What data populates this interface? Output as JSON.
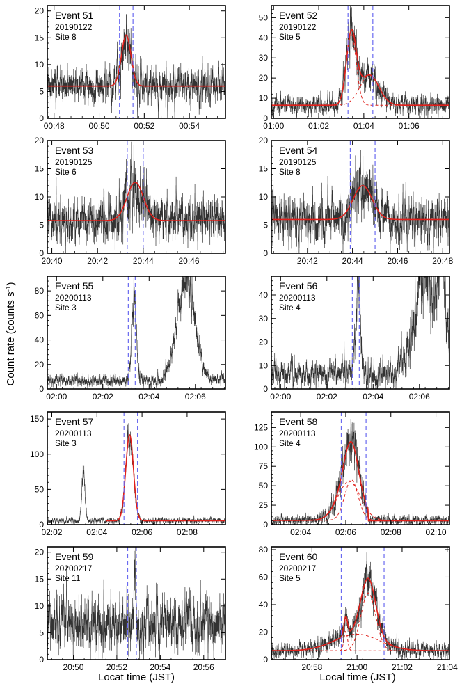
{
  "figure": {
    "ylabel": "Count rate (counts s",
    "ylabel_sup": "-1",
    "ylabel_close": ")",
    "xlabel_left": "Locat time (JST)",
    "xlabel_right": "Local time (JST)"
  },
  "colors": {
    "data": "#333333",
    "fit": "#e0201b",
    "window": "#6a6af0",
    "frame": "#000000"
  },
  "chart_data": [
    {
      "type": "line",
      "event": "Event 51",
      "date": "20190122",
      "site": "Site 8",
      "xlim": [
        47.7,
        55.6
      ],
      "ylim": [
        0,
        21
      ],
      "xticks": [
        {
          "v": 48,
          "label": "00:48"
        },
        {
          "v": 50,
          "label": "00:50"
        },
        {
          "v": 52,
          "label": "00:52"
        },
        {
          "v": 54,
          "label": "00:54"
        }
      ],
      "yticks": [
        0,
        5,
        10,
        15,
        20
      ],
      "windows": [
        50.9,
        51.5
      ],
      "baseline": 6.0,
      "noise": 1.6,
      "seed": 51,
      "peaks": [
        {
          "t": 51.2,
          "a": 9.5,
          "s": 0.21
        }
      ],
      "fit_components": false,
      "fit_range": [
        47.7,
        55.6
      ],
      "jumps": []
    },
    {
      "type": "line",
      "event": "Event 52",
      "date": "20190122",
      "site": "Site 5",
      "xlim": [
        59.9,
        67.8
      ],
      "ylim": [
        0,
        56
      ],
      "xticks": [
        {
          "v": 60,
          "label": "01:00"
        },
        {
          "v": 62,
          "label": "01:02"
        },
        {
          "v": 64,
          "label": "01:04"
        },
        {
          "v": 66,
          "label": "01:06"
        }
      ],
      "yticks": [
        0,
        10,
        20,
        30,
        40,
        50
      ],
      "windows": [
        63.3,
        64.4
      ],
      "baseline": 6.5,
      "noise": 2.2,
      "seed": 52,
      "peaks": [
        {
          "t": 63.45,
          "a": 35,
          "s": 0.22
        },
        {
          "t": 64.25,
          "a": 15,
          "s": 0.42
        }
      ],
      "fit_components": true,
      "fit_range": [
        59.9,
        67.8
      ],
      "jumps": []
    },
    {
      "type": "line",
      "event": "Event 53",
      "date": "20190125",
      "site": "Site 6",
      "xlim": [
        1239.8,
        1247.6
      ],
      "ylim": [
        0,
        20
      ],
      "xticks": [
        {
          "v": 1240,
          "label": "20:40"
        },
        {
          "v": 1242,
          "label": "20:42"
        },
        {
          "v": 1244,
          "label": "20:44"
        },
        {
          "v": 1246,
          "label": "20:46"
        }
      ],
      "yticks": [
        0,
        5,
        10,
        15,
        20
      ],
      "windows": [
        1243.3,
        1244.0
      ],
      "baseline": 5.8,
      "noise": 1.9,
      "seed": 53,
      "peaks": [
        {
          "t": 1243.65,
          "a": 6.8,
          "s": 0.36
        }
      ],
      "fit_components": false,
      "fit_range": [
        1239.8,
        1247.6
      ],
      "jumps": []
    },
    {
      "type": "line",
      "event": "Event 54",
      "date": "20190125",
      "site": "Site 8",
      "xlim": [
        1240.4,
        1248.3
      ],
      "ylim": [
        0,
        20
      ],
      "xticks": [
        {
          "v": 1242,
          "label": "20:42"
        },
        {
          "v": 1244,
          "label": "20:44"
        },
        {
          "v": 1246,
          "label": "20:46"
        },
        {
          "v": 1248,
          "label": "20:48"
        }
      ],
      "yticks": [
        0,
        5,
        10,
        15,
        20
      ],
      "windows": [
        1243.9,
        1245.0
      ],
      "baseline": 6.0,
      "noise": 1.9,
      "seed": 54,
      "peaks": [
        {
          "t": 1244.45,
          "a": 6.0,
          "s": 0.42
        }
      ],
      "fit_components": false,
      "fit_range": [
        1240.4,
        1248.3
      ],
      "jumps": []
    },
    {
      "type": "line",
      "event": "Event 55",
      "date": "20200113",
      "site": "Site 3",
      "xlim": [
        119.6,
        127.3
      ],
      "ylim": [
        0,
        92
      ],
      "xticks": [
        {
          "v": 120,
          "label": "02:00"
        },
        {
          "v": 122,
          "label": "02:02"
        },
        {
          "v": 124,
          "label": "02:04"
        },
        {
          "v": 126,
          "label": "02:06"
        }
      ],
      "yticks": [
        0,
        20,
        40,
        60,
        80
      ],
      "windows": [
        123.1,
        123.4
      ],
      "baseline": 7.0,
      "noise": 2.3,
      "seed": 55,
      "peaks": [
        {
          "t": 123.35,
          "a": 70,
          "s": 0.1
        },
        {
          "t": 125.6,
          "a": 82,
          "s": 0.38
        }
      ],
      "fit_components": false,
      "fit_range": null,
      "jumps": []
    },
    {
      "type": "line",
      "event": "Event 56",
      "date": "20200113",
      "site": "Site 4",
      "xlim": [
        119.6,
        127.3
      ],
      "ylim": [
        0,
        48
      ],
      "xticks": [
        {
          "v": 120,
          "label": "02:00"
        },
        {
          "v": 122,
          "label": "02:02"
        },
        {
          "v": 124,
          "label": "02:04"
        },
        {
          "v": 126,
          "label": "02:06"
        }
      ],
      "yticks": [
        0,
        10,
        20,
        30,
        40
      ],
      "windows": [
        123.1,
        123.4
      ],
      "baseline": 6.5,
      "noise": 2.6,
      "seed": 56,
      "peaks": [
        {
          "t": 123.35,
          "a": 36,
          "s": 0.1
        },
        {
          "t": 126.3,
          "a": 42,
          "s": 0.5
        },
        {
          "t": 127.0,
          "a": 30,
          "s": 0.16
        }
      ],
      "fit_components": false,
      "fit_range": null,
      "jumps": []
    },
    {
      "type": "line",
      "event": "Event 57",
      "date": "20200113",
      "site": "Site 3",
      "xlim": [
        121.8,
        129.7
      ],
      "ylim": [
        0,
        160
      ],
      "xticks": [
        {
          "v": 122,
          "label": "02:02"
        },
        {
          "v": 124,
          "label": "02:04"
        },
        {
          "v": 126,
          "label": "02:06"
        },
        {
          "v": 128,
          "label": "02:08"
        }
      ],
      "yticks": [
        0,
        50,
        100,
        150
      ],
      "windows": [
        125.2,
        125.8
      ],
      "baseline": 5.5,
      "noise": 2.0,
      "seed": 57,
      "peaks": [
        {
          "t": 125.45,
          "a": 122,
          "s": 0.17
        },
        {
          "t": 123.4,
          "a": 65,
          "s": 0.07
        }
      ],
      "fit_components": false,
      "fit_range": [
        124.4,
        129.7
      ],
      "jumps": []
    },
    {
      "type": "line",
      "event": "Event 58",
      "date": "20200113",
      "site": "Site 4",
      "xlim": [
        122.7,
        130.6
      ],
      "ylim": [
        0,
        145
      ],
      "xticks": [
        {
          "v": 124,
          "label": "02:04"
        },
        {
          "v": 126,
          "label": "02:06"
        },
        {
          "v": 128,
          "label": "02:08"
        },
        {
          "v": 130,
          "label": "02:10"
        }
      ],
      "yticks": [
        0,
        25,
        50,
        75,
        100,
        125
      ],
      "windows": [
        125.8,
        126.9
      ],
      "baseline": 5.5,
      "noise": 3.0,
      "seed": 58,
      "peaks": [
        {
          "t": 126.25,
          "a": 52,
          "s": 0.3
        },
        {
          "t": 126.15,
          "a": 50,
          "s": 0.5
        }
      ],
      "fit_components": true,
      "fit_range": [
        122.7,
        130.6
      ],
      "jumps": [
        {
          "t": 127.0,
          "to": 5
        }
      ]
    },
    {
      "type": "line",
      "event": "Event 59",
      "date": "20200217",
      "site": "Site 11",
      "xlim": [
        1248.8,
        1257.0
      ],
      "ylim": [
        0,
        21
      ],
      "xticks": [
        {
          "v": 1250,
          "label": "20:50"
        },
        {
          "v": 1252,
          "label": "20:52"
        },
        {
          "v": 1254,
          "label": "20:54"
        },
        {
          "v": 1256,
          "label": "20:56"
        }
      ],
      "yticks": [
        0,
        5,
        10,
        15,
        20
      ],
      "windows": [
        1252.5,
        1252.9
      ],
      "baseline": 6.8,
      "noise": 2.4,
      "seed": 59,
      "peaks": [
        {
          "t": 1252.85,
          "a": 10,
          "s": 0.04
        }
      ],
      "fit_components": false,
      "fit_range": null,
      "jumps": []
    },
    {
      "type": "line",
      "event": "Event 60",
      "date": "20200217",
      "site": "Site 5",
      "xlim": [
        1256.2,
        1264.1
      ],
      "ylim": [
        0,
        82
      ],
      "xticks": [
        {
          "v": 1258,
          "label": "20:58"
        },
        {
          "v": 1260,
          "label": "21:00"
        },
        {
          "v": 1262,
          "label": "21:02"
        },
        {
          "v": 1264,
          "label": "21:04"
        }
      ],
      "yticks": [
        0,
        20,
        40,
        60,
        80
      ],
      "windows": [
        1259.3,
        1261.2
      ],
      "baseline": 6.5,
      "noise": 2.5,
      "seed": 60,
      "peaks": [
        {
          "t": 1260.5,
          "a": 42,
          "s": 0.33
        },
        {
          "t": 1259.5,
          "a": 14,
          "s": 0.08
        },
        {
          "t": 1260.0,
          "a": 12,
          "s": 1.0
        }
      ],
      "fit_components": true,
      "fit_range": [
        1256.2,
        1264.1
      ],
      "jumps": []
    }
  ]
}
